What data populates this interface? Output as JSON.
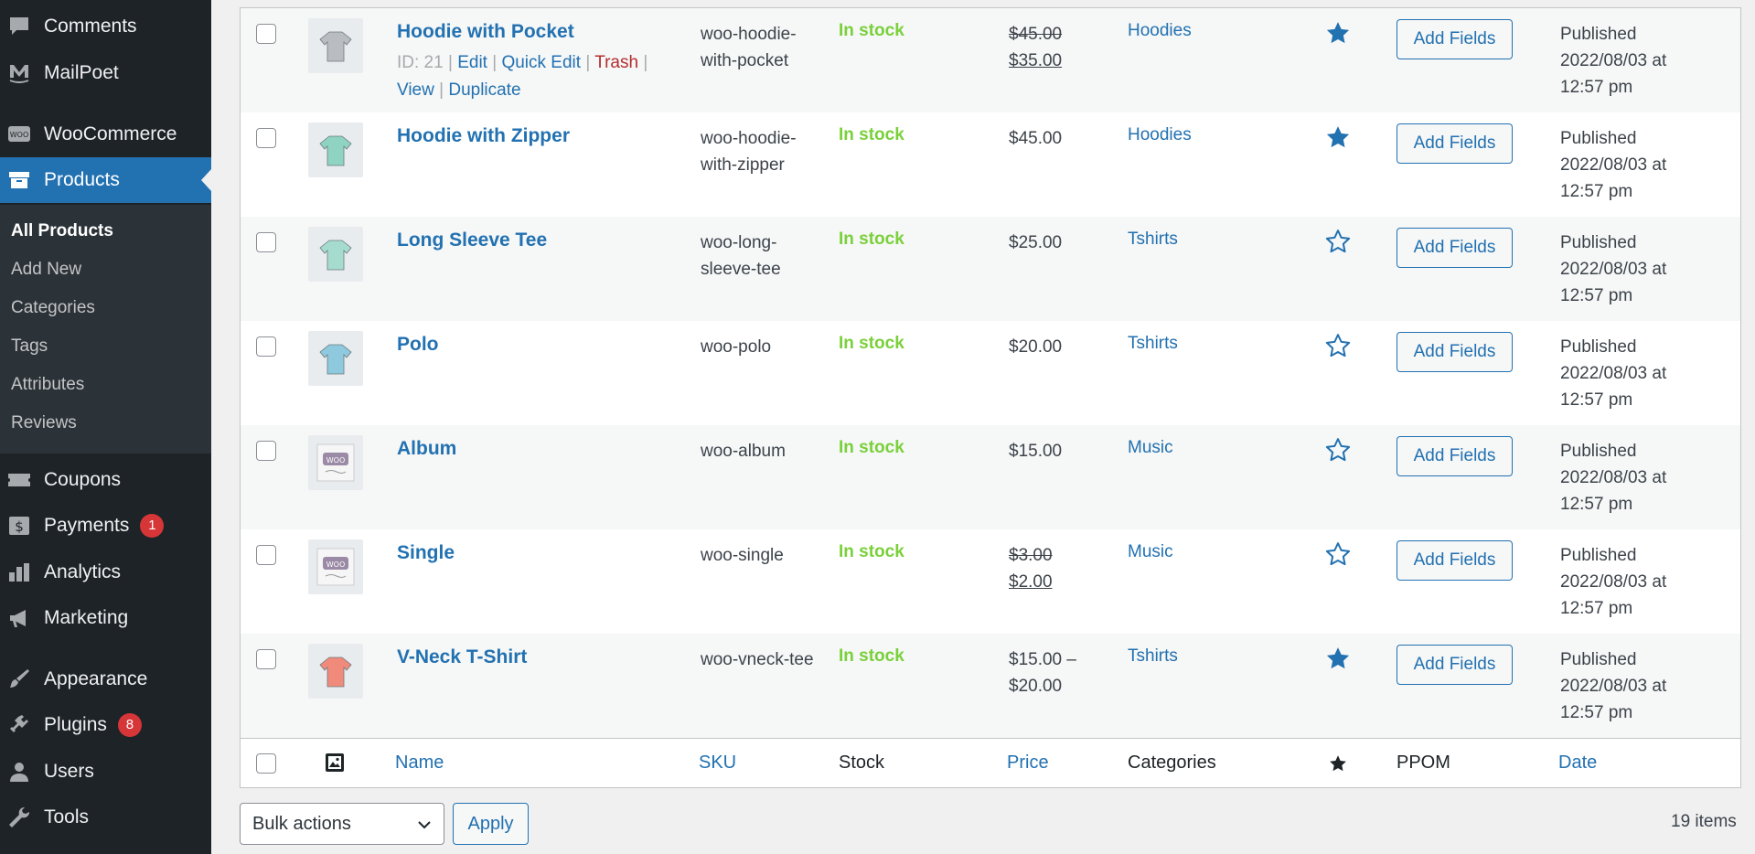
{
  "sidebar": {
    "items": [
      {
        "label": "Comments",
        "icon": "comment-icon"
      },
      {
        "label": "MailPoet",
        "icon": "mailpoet-icon"
      },
      {
        "label": "WooCommerce",
        "icon": "woocommerce-icon"
      },
      {
        "label": "Products",
        "icon": "archive-box-icon",
        "active": true
      },
      {
        "label": "Coupons",
        "icon": "ticket-icon"
      },
      {
        "label": "Payments",
        "icon": "dollar-icon",
        "badge": "1"
      },
      {
        "label": "Analytics",
        "icon": "bar-chart-icon"
      },
      {
        "label": "Marketing",
        "icon": "megaphone-icon"
      },
      {
        "label": "Appearance",
        "icon": "paintbrush-icon"
      },
      {
        "label": "Plugins",
        "icon": "plug-icon",
        "badge": "8"
      },
      {
        "label": "Users",
        "icon": "user-icon"
      },
      {
        "label": "Tools",
        "icon": "wrench-icon"
      }
    ],
    "submenu": [
      "All Products",
      "Add New",
      "Categories",
      "Tags",
      "Attributes",
      "Reviews"
    ]
  },
  "products": [
    {
      "name": "Hoodie with Pocket",
      "id_label": "ID: 21",
      "actions": {
        "edit": "Edit",
        "quick_edit": "Quick Edit",
        "trash": "Trash",
        "view": "View",
        "duplicate": "Duplicate"
      },
      "sku": "woo-hoodie-with-pocket",
      "stock": "In stock",
      "price_old": "$45.00",
      "price": "$35.00",
      "category": "Hoodies",
      "featured": true,
      "button": "Add Fields",
      "date": "Published 2022/08/03 at 12:57 pm",
      "thumb_color": "#b9bdc2"
    },
    {
      "name": "Hoodie with Zipper",
      "sku": "woo-hoodie-with-zipper",
      "stock": "In stock",
      "price": "$45.00",
      "category": "Hoodies",
      "featured": true,
      "button": "Add Fields",
      "date": "Published 2022/08/03 at 12:57 pm",
      "thumb_color": "#8fd3c2"
    },
    {
      "name": "Long Sleeve Tee",
      "sku": "woo-long-sleeve-tee",
      "stock": "In stock",
      "price": "$25.00",
      "category": "Tshirts",
      "featured": false,
      "button": "Add Fields",
      "date": "Published 2022/08/03 at 12:57 pm",
      "thumb_color": "#a6dccd"
    },
    {
      "name": "Polo",
      "sku": "woo-polo",
      "stock": "In stock",
      "price": "$20.00",
      "category": "Tshirts",
      "featured": false,
      "button": "Add Fields",
      "date": "Published 2022/08/03 at 12:57 pm",
      "thumb_color": "#8fc9dd"
    },
    {
      "name": "Album",
      "sku": "woo-album",
      "stock": "In stock",
      "price": "$15.00",
      "category": "Music",
      "featured": false,
      "button": "Add Fields",
      "date": "Published 2022/08/03 at 12:57 pm",
      "thumb_color": "#9b8aa6",
      "thumb_label": "WOO"
    },
    {
      "name": "Single",
      "sku": "woo-single",
      "stock": "In stock",
      "price_old": "$3.00",
      "price": "$2.00",
      "category": "Music",
      "featured": false,
      "button": "Add Fields",
      "date": "Published 2022/08/03 at 12:57 pm",
      "thumb_color": "#9b8aa6",
      "thumb_label": "WOO"
    },
    {
      "name": "V-Neck T-Shirt",
      "sku": "woo-vneck-tee",
      "stock": "In stock",
      "price": "$15.00 – $20.00",
      "category": "Tshirts",
      "featured": true,
      "button": "Add Fields",
      "date": "Published 2022/08/03 at 12:57 pm",
      "thumb_color": "#f08a7a"
    }
  ],
  "footer_columns": {
    "name": "Name",
    "sku": "SKU",
    "stock": "Stock",
    "price": "Price",
    "categories": "Categories",
    "ppom": "PPOM",
    "date": "Date"
  },
  "bulk": {
    "select_label": "Bulk actions",
    "apply": "Apply",
    "count": "19 items"
  },
  "colors": {
    "accent": "#2271b1",
    "stock": "#7ad03a",
    "trash": "#b32d2e",
    "badge": "#d63638",
    "sidebar": "#1d2327"
  }
}
